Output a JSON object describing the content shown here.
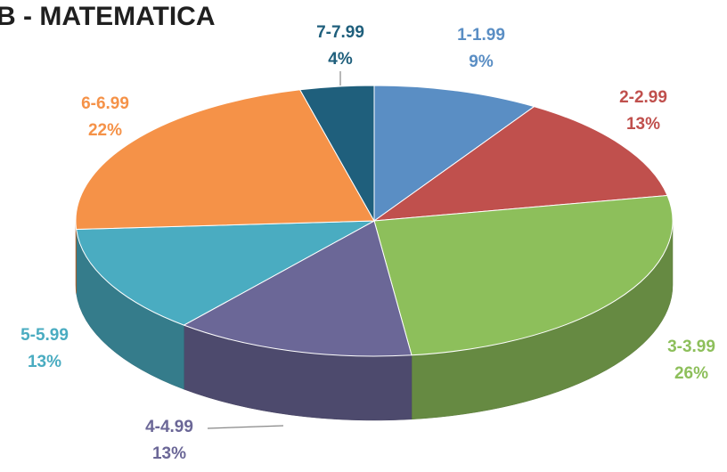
{
  "chart_data": {
    "type": "pie",
    "title": "B - MATEMATICA",
    "categories": [
      "1-1.99",
      "2-2.99",
      "3-3.99",
      "4-4.99",
      "5-5.99",
      "6-6.99",
      "7-7.99"
    ],
    "values": [
      9,
      13,
      26,
      13,
      13,
      22,
      4
    ],
    "value_labels": [
      "9%",
      "13%",
      "26%",
      "13%",
      "13%",
      "22%",
      "4%"
    ],
    "colors": [
      "#5a8ec4",
      "#c0504d",
      "#8dbf5b",
      "#6b6797",
      "#4aacc1",
      "#f59248",
      "#1f5f7c"
    ]
  }
}
